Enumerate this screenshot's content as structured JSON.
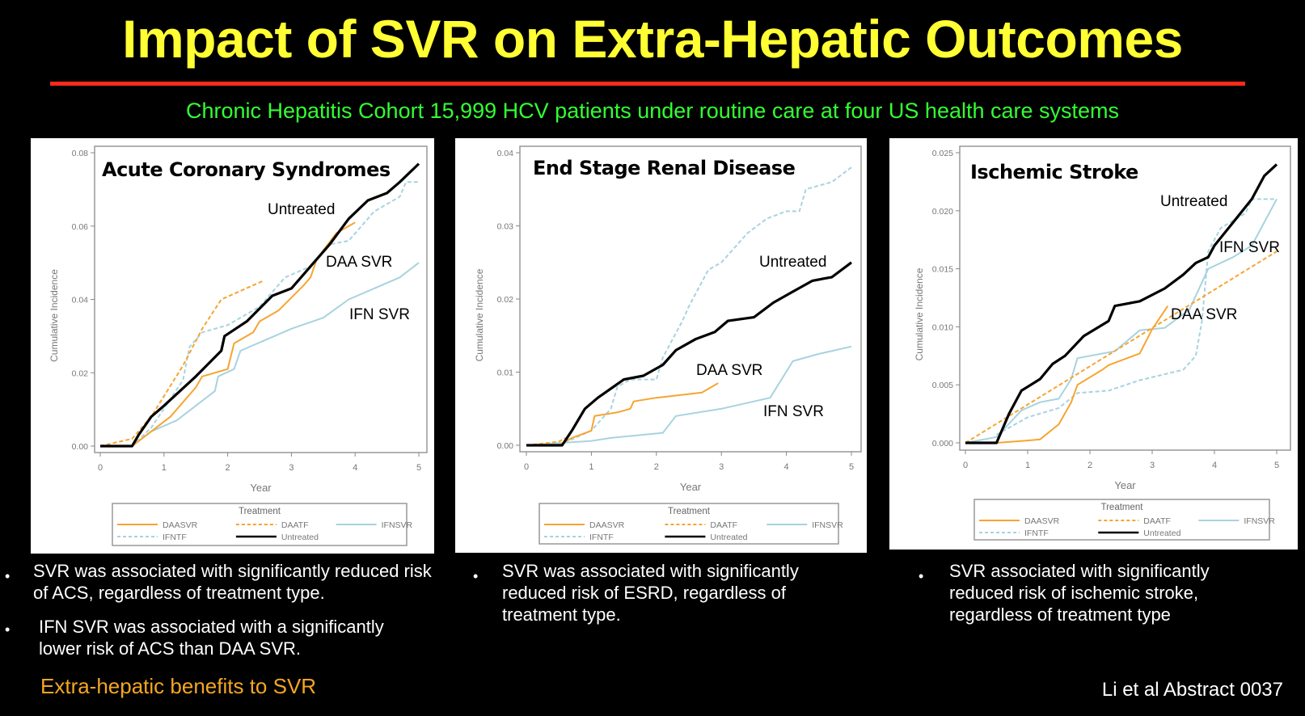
{
  "slide": {
    "title": "Impact of SVR on Extra-Hepatic Outcomes",
    "subtitle": "Chronic Hepatitis Cohort 15,999 HCV patients under routine care at four US health care systems",
    "title_color": "#ffff33",
    "rule_color": "#ff2a1a",
    "subtitle_color": "#33ff33",
    "bullets": [
      [
        "SVR was associated with significantly reduced risk of ACS, regardless of treatment type.",
        "IFN SVR was associated with a significantly lower risk of ACS than DAA SVR."
      ],
      [
        "SVR was associated with significantly reduced risk of ESRD, regardless of treatment type."
      ],
      [
        "SVR associated with significantly reduced risk of ischemic stroke, regardless of treatment type"
      ]
    ],
    "bullet_glyph": "•",
    "benefit_note": "Extra-hepatic benefits to SVR",
    "citation": "Li et al Abstract 0037"
  },
  "chart_data": [
    {
      "type": "line",
      "title": "Acute Coronary Syndromes",
      "xlabel": "Year",
      "ylabel": "Cumulative Incidence",
      "xlim": [
        0,
        5
      ],
      "ylim": [
        0,
        0.08
      ],
      "xticks": [
        "0",
        "1",
        "2",
        "3",
        "4",
        "5"
      ],
      "yticks": [
        "0.00",
        "0.02",
        "0.04",
        "0.06",
        "0.08"
      ],
      "legend_title": "Treatment",
      "legend_position": "bottom",
      "annotations": [
        "Untreated",
        "DAA SVR",
        "IFN SVR"
      ],
      "series": [
        {
          "name": "DAASVR",
          "color": "#f7a431",
          "dash": false,
          "points": [
            [
              0,
              0
            ],
            [
              0.5,
              0
            ],
            [
              0.8,
              0.004
            ],
            [
              1.1,
              0.008
            ],
            [
              1.5,
              0.016
            ],
            [
              1.6,
              0.019
            ],
            [
              2,
              0.021
            ],
            [
              2.1,
              0.028
            ],
            [
              2.4,
              0.031
            ],
            [
              2.5,
              0.034
            ],
            [
              2.8,
              0.037
            ],
            [
              3.2,
              0.044
            ],
            [
              3.3,
              0.046
            ],
            [
              3.4,
              0.051
            ],
            [
              3.7,
              0.058
            ],
            [
              4,
              0.061
            ]
          ]
        },
        {
          "name": "DAATF",
          "color": "#f7a431",
          "dash": true,
          "points": [
            [
              0,
              0
            ],
            [
              0.5,
              0.002
            ],
            [
              0.8,
              0.008
            ],
            [
              1.3,
              0.022
            ],
            [
              1.6,
              0.032
            ],
            [
              1.9,
              0.04
            ],
            [
              2.55,
              0.045
            ]
          ]
        },
        {
          "name": "IFNSVR",
          "color": "#a7d3e0",
          "dash": false,
          "points": [
            [
              0,
              0
            ],
            [
              0.5,
              0
            ],
            [
              0.8,
              0.004
            ],
            [
              1.2,
              0.007
            ],
            [
              1.5,
              0.011
            ],
            [
              1.8,
              0.015
            ],
            [
              1.85,
              0.019
            ],
            [
              2.1,
              0.021
            ],
            [
              2.2,
              0.026
            ],
            [
              2.6,
              0.029
            ],
            [
              3,
              0.032
            ],
            [
              3.5,
              0.035
            ],
            [
              3.9,
              0.04
            ],
            [
              4.3,
              0.043
            ],
            [
              4.7,
              0.046
            ],
            [
              5,
              0.05
            ]
          ]
        },
        {
          "name": "IFNTF",
          "color": "#a7d3e0",
          "dash": true,
          "points": [
            [
              0.5,
              0
            ],
            [
              0.8,
              0.005
            ],
            [
              1.3,
              0.018
            ],
            [
              1.4,
              0.027
            ],
            [
              1.6,
              0.031
            ],
            [
              2,
              0.033
            ],
            [
              2.5,
              0.038
            ],
            [
              2.9,
              0.046
            ],
            [
              3.3,
              0.049
            ],
            [
              3.6,
              0.055
            ],
            [
              3.9,
              0.056
            ],
            [
              4.3,
              0.064
            ],
            [
              4.7,
              0.068
            ],
            [
              4.8,
              0.072
            ],
            [
              5,
              0.072
            ]
          ]
        },
        {
          "name": "Untreated",
          "color": "#000000",
          "dash": false,
          "points": [
            [
              0,
              0
            ],
            [
              0.5,
              0
            ],
            [
              0.6,
              0.003
            ],
            [
              0.8,
              0.008
            ],
            [
              1,
              0.011
            ],
            [
              1.5,
              0.019
            ],
            [
              1.9,
              0.026
            ],
            [
              1.95,
              0.03
            ],
            [
              2.3,
              0.034
            ],
            [
              2.7,
              0.041
            ],
            [
              3,
              0.043
            ],
            [
              3.3,
              0.049
            ],
            [
              3.6,
              0.055
            ],
            [
              3.9,
              0.062
            ],
            [
              4.2,
              0.067
            ],
            [
              4.5,
              0.069
            ],
            [
              4.7,
              0.072
            ],
            [
              5,
              0.077
            ]
          ]
        }
      ]
    },
    {
      "type": "line",
      "title": "End Stage Renal Disease",
      "xlabel": "Year",
      "ylabel": "Cumulative Incidence",
      "xlim": [
        0,
        5
      ],
      "ylim": [
        0,
        0.04
      ],
      "xticks": [
        "0",
        "1",
        "2",
        "3",
        "4",
        "5"
      ],
      "yticks": [
        "0.00",
        "0.01",
        "0.02",
        "0.03",
        "0.04"
      ],
      "legend_title": "Treatment",
      "legend_position": "bottom",
      "annotations": [
        "Untreated",
        "DAA SVR",
        "IFN SVR"
      ],
      "series": [
        {
          "name": "DAASVR",
          "color": "#f7a431",
          "dash": false,
          "points": [
            [
              0,
              0
            ],
            [
              0.5,
              0
            ],
            [
              0.7,
              0.001
            ],
            [
              1,
              0.002
            ],
            [
              1.05,
              0.004
            ],
            [
              1.4,
              0.0045
            ],
            [
              1.6,
              0.005
            ],
            [
              1.65,
              0.006
            ],
            [
              2,
              0.0065
            ],
            [
              2.5,
              0.007
            ],
            [
              2.7,
              0.0072
            ],
            [
              2.95,
              0.0085
            ]
          ]
        },
        {
          "name": "DAATF",
          "color": "#f7a431",
          "dash": true,
          "points": [
            [
              0,
              0
            ],
            [
              0.5,
              0.0005
            ],
            [
              0.6,
              0.001
            ]
          ]
        },
        {
          "name": "IFNSVR",
          "color": "#a7d3e0",
          "dash": false,
          "points": [
            [
              0,
              0
            ],
            [
              0.5,
              0.0003
            ],
            [
              1,
              0.0006
            ],
            [
              1.3,
              0.001
            ],
            [
              2.1,
              0.0017
            ],
            [
              2.3,
              0.004
            ],
            [
              3,
              0.005
            ],
            [
              3.75,
              0.0065
            ],
            [
              4.1,
              0.0115
            ],
            [
              4.5,
              0.0125
            ],
            [
              5,
              0.0135
            ]
          ]
        },
        {
          "name": "IFNTF",
          "color": "#a7d3e0",
          "dash": true,
          "points": [
            [
              0.5,
              0
            ],
            [
              1,
              0.002
            ],
            [
              1.3,
              0.005
            ],
            [
              1.4,
              0.008
            ],
            [
              1.6,
              0.009
            ],
            [
              2,
              0.009
            ],
            [
              2.1,
              0.012
            ],
            [
              2.4,
              0.017
            ],
            [
              2.5,
              0.019
            ],
            [
              2.8,
              0.024
            ],
            [
              3,
              0.025
            ],
            [
              3.4,
              0.029
            ],
            [
              3.7,
              0.031
            ],
            [
              4,
              0.032
            ],
            [
              4.2,
              0.032
            ],
            [
              4.3,
              0.035
            ],
            [
              4.7,
              0.036
            ],
            [
              5,
              0.038
            ]
          ]
        },
        {
          "name": "Untreated",
          "color": "#000000",
          "dash": false,
          "points": [
            [
              0,
              0
            ],
            [
              0.55,
              0
            ],
            [
              0.7,
              0.002
            ],
            [
              0.9,
              0.005
            ],
            [
              1.1,
              0.0065
            ],
            [
              1.5,
              0.009
            ],
            [
              1.8,
              0.0095
            ],
            [
              2.1,
              0.011
            ],
            [
              2.3,
              0.013
            ],
            [
              2.6,
              0.0145
            ],
            [
              2.9,
              0.0155
            ],
            [
              3.1,
              0.017
            ],
            [
              3.5,
              0.0175
            ],
            [
              3.8,
              0.0195
            ],
            [
              4.1,
              0.021
            ],
            [
              4.4,
              0.0225
            ],
            [
              4.7,
              0.023
            ],
            [
              5,
              0.025
            ]
          ]
        }
      ]
    },
    {
      "type": "line",
      "title": "Ischemic Stroke",
      "xlabel": "Year",
      "ylabel": "Cumulative Incidence",
      "xlim": [
        0,
        5
      ],
      "ylim": [
        0,
        0.025
      ],
      "xticks": [
        "0",
        "1",
        "2",
        "3",
        "4",
        "5"
      ],
      "yticks": [
        "0.000",
        "0.005",
        "0.010",
        "0.015",
        "0.020",
        "0.025"
      ],
      "legend_title": "Treatment",
      "legend_position": "bottom",
      "annotations": [
        "Untreated",
        "IFN SVR",
        "DAA SVR"
      ],
      "series": [
        {
          "name": "DAASVR",
          "color": "#f7a431",
          "dash": false,
          "points": [
            [
              0,
              0
            ],
            [
              0.5,
              0
            ],
            [
              1,
              0.0002
            ],
            [
              1.2,
              0.0003
            ],
            [
              1.5,
              0.0016
            ],
            [
              1.7,
              0.0035
            ],
            [
              1.8,
              0.005
            ],
            [
              2.2,
              0.0063
            ],
            [
              2.3,
              0.0067
            ],
            [
              2.8,
              0.0077
            ],
            [
              3,
              0.0098
            ],
            [
              3.25,
              0.0118
            ]
          ]
        },
        {
          "name": "DAATF",
          "color": "#f7a431",
          "dash": true,
          "points": [
            [
              0,
              0
            ],
            [
              5,
              0.0165
            ]
          ]
        },
        {
          "name": "IFNSVR",
          "color": "#a7d3e0",
          "dash": false,
          "points": [
            [
              0,
              0
            ],
            [
              0.5,
              0.0005
            ],
            [
              0.9,
              0.0028
            ],
            [
              1.2,
              0.0035
            ],
            [
              1.5,
              0.0038
            ],
            [
              1.7,
              0.0055
            ],
            [
              1.8,
              0.0073
            ],
            [
              2.4,
              0.0079
            ],
            [
              2.8,
              0.0097
            ],
            [
              3.2,
              0.0099
            ],
            [
              3.6,
              0.0115
            ],
            [
              3.9,
              0.015
            ],
            [
              4.3,
              0.016
            ],
            [
              4.6,
              0.017
            ],
            [
              5,
              0.021
            ]
          ]
        },
        {
          "name": "IFNTF",
          "color": "#a7d3e0",
          "dash": true,
          "points": [
            [
              0.5,
              0.0007
            ],
            [
              1,
              0.0022
            ],
            [
              1.5,
              0.003
            ],
            [
              1.8,
              0.0043
            ],
            [
              2.3,
              0.0045
            ],
            [
              2.8,
              0.0054
            ],
            [
              3.5,
              0.0063
            ],
            [
              3.7,
              0.0075
            ],
            [
              3.8,
              0.0105
            ],
            [
              3.9,
              0.0165
            ],
            [
              4.1,
              0.0185
            ],
            [
              4.5,
              0.0198
            ],
            [
              4.6,
              0.021
            ],
            [
              5,
              0.021
            ]
          ]
        },
        {
          "name": "Untreated",
          "color": "#000000",
          "dash": false,
          "points": [
            [
              0,
              0
            ],
            [
              0.5,
              0
            ],
            [
              0.7,
              0.0025
            ],
            [
              0.9,
              0.0045
            ],
            [
              1.2,
              0.0055
            ],
            [
              1.4,
              0.0068
            ],
            [
              1.6,
              0.0075
            ],
            [
              1.9,
              0.0092
            ],
            [
              2.3,
              0.0105
            ],
            [
              2.4,
              0.0118
            ],
            [
              2.8,
              0.0122
            ],
            [
              3.2,
              0.0133
            ],
            [
              3.5,
              0.0145
            ],
            [
              3.7,
              0.0155
            ],
            [
              3.9,
              0.016
            ],
            [
              4,
              0.017
            ],
            [
              4.3,
              0.019
            ],
            [
              4.6,
              0.021
            ],
            [
              4.8,
              0.023
            ],
            [
              5,
              0.024
            ]
          ]
        }
      ]
    }
  ]
}
